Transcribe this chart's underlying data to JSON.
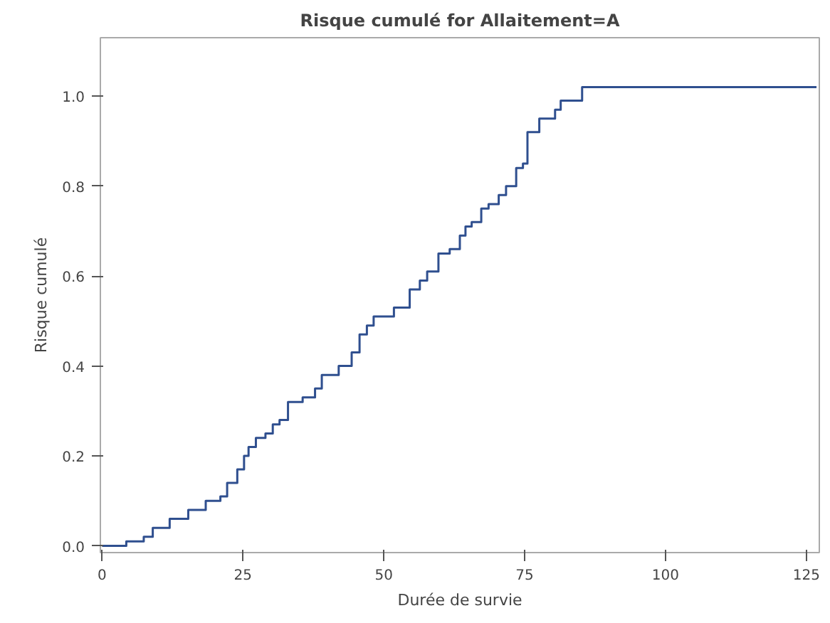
{
  "chart_data": {
    "type": "step",
    "title": "Risque cumulé for Allaitement=A",
    "xlabel": "Durée de survie",
    "ylabel": "Risque cumulé",
    "x": [
      0,
      4.3,
      7.4,
      9,
      12,
      15.3,
      18.4,
      21,
      22.2,
      24,
      25.2,
      26,
      27.3,
      29,
      30.3,
      31.5,
      33,
      35.6,
      37.8,
      39,
      42,
      44.3,
      45.7,
      47,
      48.2,
      50.8,
      51.8,
      54.6,
      56.4,
      57.7,
      59.7,
      61.7,
      63.5,
      64.5,
      65.6,
      67.3,
      68.6,
      70.4,
      71.7,
      73.5,
      74.7,
      75.5,
      77.6,
      80.4,
      81.4,
      85.2,
      126.8
    ],
    "series": [
      {
        "color": "#2f4f8f",
        "values": [
          0,
          0.01,
          0.02,
          0.04,
          0.06,
          0.08,
          0.1,
          0.11,
          0.14,
          0.17,
          0.2,
          0.22,
          0.24,
          0.25,
          0.27,
          0.28,
          0.32,
          0.33,
          0.35,
          0.38,
          0.4,
          0.43,
          0.47,
          0.49,
          0.51,
          0.51,
          0.53,
          0.57,
          0.59,
          0.61,
          0.65,
          0.66,
          0.69,
          0.71,
          0.72,
          0.75,
          0.76,
          0.78,
          0.8,
          0.84,
          0.85,
          0.92,
          0.95,
          0.97,
          0.99,
          1.02,
          1.02
        ]
      }
    ],
    "xlim": [
      -0.3,
      127.3
    ],
    "ylim": [
      -0.015,
      1.13
    ],
    "xticks": [
      0,
      25,
      50,
      75,
      100,
      125
    ],
    "yticks": [
      {
        "value": 0,
        "label": "0.0"
      },
      {
        "value": 0.2,
        "label": "0.2"
      },
      {
        "value": 0.4,
        "label": "0.4"
      },
      {
        "value": 0.6,
        "label": "0.6"
      },
      {
        "value": 0.8,
        "label": "0.8"
      },
      {
        "value": 1,
        "label": "1.0"
      }
    ],
    "grid": false,
    "line_style": "solid"
  }
}
